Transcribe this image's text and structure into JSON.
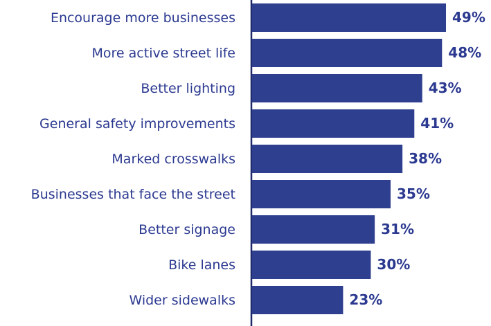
{
  "chart_data": {
    "type": "bar",
    "orientation": "horizontal",
    "categories": [
      "Encourage more businesses",
      "More active street life",
      "Better lighting",
      "General safety improvements",
      "Marked crosswalks",
      "Businesses that face the street",
      "Better signage",
      "Bike lanes",
      "Wider sidewalks"
    ],
    "values": [
      49,
      48,
      43,
      41,
      38,
      35,
      31,
      30,
      23
    ],
    "value_labels": [
      "49%",
      "48%",
      "43%",
      "41%",
      "38%",
      "35%",
      "31%",
      "30%",
      "23%"
    ],
    "color": "#2e3f8f"
  }
}
